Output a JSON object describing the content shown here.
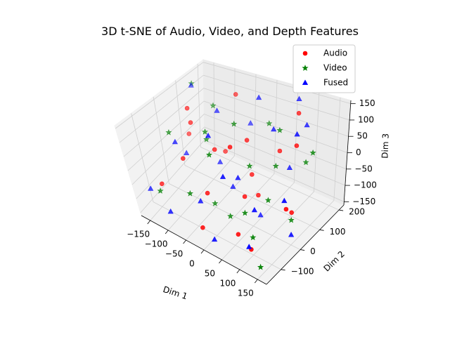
{
  "chart_data": {
    "type": "scatter",
    "projection": "3d",
    "title": "3D t-SNE of Audio, Video, and Depth Features",
    "xlabel": "Dim 1",
    "ylabel": "Dim 2",
    "zlabel": "Dim 3",
    "xlim": [
      -175,
      175
    ],
    "ylim": [
      -175,
      225
    ],
    "zlim": [
      -160,
      160
    ],
    "x_ticks": [
      "−150",
      "−100",
      "−50",
      "0",
      "50",
      "100",
      "150"
    ],
    "y_ticks": [
      "−100",
      "0",
      "100",
      "200"
    ],
    "z_ticks": [
      "−150",
      "−100",
      "−50",
      "0",
      "50",
      "100",
      "150"
    ],
    "grid": true,
    "legend_position": "top-right",
    "series": [
      {
        "name": "Audio",
        "marker": "circle",
        "color": "#ff0000",
        "points": [
          [
            -120,
            40,
            120
          ],
          [
            -90,
            -60,
            20
          ],
          [
            -60,
            150,
            130
          ],
          [
            -40,
            0,
            40
          ],
          [
            -20,
            -90,
            -40
          ],
          [
            10,
            60,
            60
          ],
          [
            40,
            -20,
            -60
          ],
          [
            70,
            100,
            30
          ],
          [
            110,
            -130,
            -120
          ],
          [
            140,
            20,
            -80
          ],
          [
            160,
            -50,
            -20
          ],
          [
            -150,
            90,
            -20
          ],
          [
            -10,
            -150,
            -110
          ],
          [
            90,
            150,
            130
          ],
          [
            30,
            40,
            -30
          ],
          [
            120,
            80,
            80
          ],
          [
            -130,
            -110,
            -60
          ],
          [
            60,
            -100,
            -120
          ],
          [
            -70,
            110,
            -50
          ],
          [
            20,
            -40,
            100
          ],
          [
            -110,
            30,
            80
          ],
          [
            50,
            30,
            -80
          ]
        ]
      },
      {
        "name": "Video",
        "marker": "star",
        "color": "#008000",
        "points": [
          [
            -140,
            -20,
            60
          ],
          [
            -100,
            120,
            90
          ],
          [
            -50,
            -120,
            -40
          ],
          [
            -20,
            60,
            100
          ],
          [
            20,
            -60,
            -110
          ],
          [
            60,
            120,
            80
          ],
          [
            100,
            -20,
            -40
          ],
          [
            140,
            -140,
            -150
          ],
          [
            150,
            100,
            60
          ],
          [
            -160,
            140,
            130
          ],
          [
            -30,
            -40,
            -110
          ],
          [
            40,
            10,
            20
          ],
          [
            80,
            60,
            10
          ],
          [
            110,
            -120,
            -90
          ],
          [
            -80,
            40,
            30
          ],
          [
            10,
            170,
            50
          ],
          [
            -120,
            -140,
            -60
          ],
          [
            130,
            40,
            -120
          ],
          [
            0,
            -100,
            100
          ],
          [
            70,
            -80,
            -60
          ],
          [
            -60,
            0,
            90
          ],
          [
            120,
            130,
            0
          ]
        ]
      },
      {
        "name": "Fused",
        "marker": "triangle",
        "color": "#0000ff",
        "points": [
          [
            -150,
            120,
            140
          ],
          [
            -110,
            -50,
            60
          ],
          [
            -70,
            80,
            110
          ],
          [
            -30,
            -110,
            -60
          ],
          [
            0,
            140,
            150
          ],
          [
            30,
            -30,
            0
          ],
          [
            60,
            90,
            100
          ],
          [
            100,
            -90,
            -30
          ],
          [
            150,
            0,
            -130
          ],
          [
            -160,
            -120,
            -90
          ],
          [
            -40,
            180,
            20
          ],
          [
            20,
            -150,
            -130
          ],
          [
            80,
            170,
            160
          ],
          [
            130,
            60,
            130
          ],
          [
            -130,
            30,
            -40
          ],
          [
            -10,
            20,
            -80
          ],
          [
            40,
            -120,
            60
          ],
          [
            90,
            110,
            -20
          ],
          [
            160,
            -60,
            10
          ],
          [
            -90,
            -160,
            -100
          ],
          [
            50,
            40,
            -150
          ],
          [
            120,
            -160,
            -90
          ],
          [
            -60,
            60,
            -50
          ],
          [
            110,
            150,
            100
          ],
          [
            -20,
            -60,
            130
          ]
        ]
      }
    ]
  }
}
